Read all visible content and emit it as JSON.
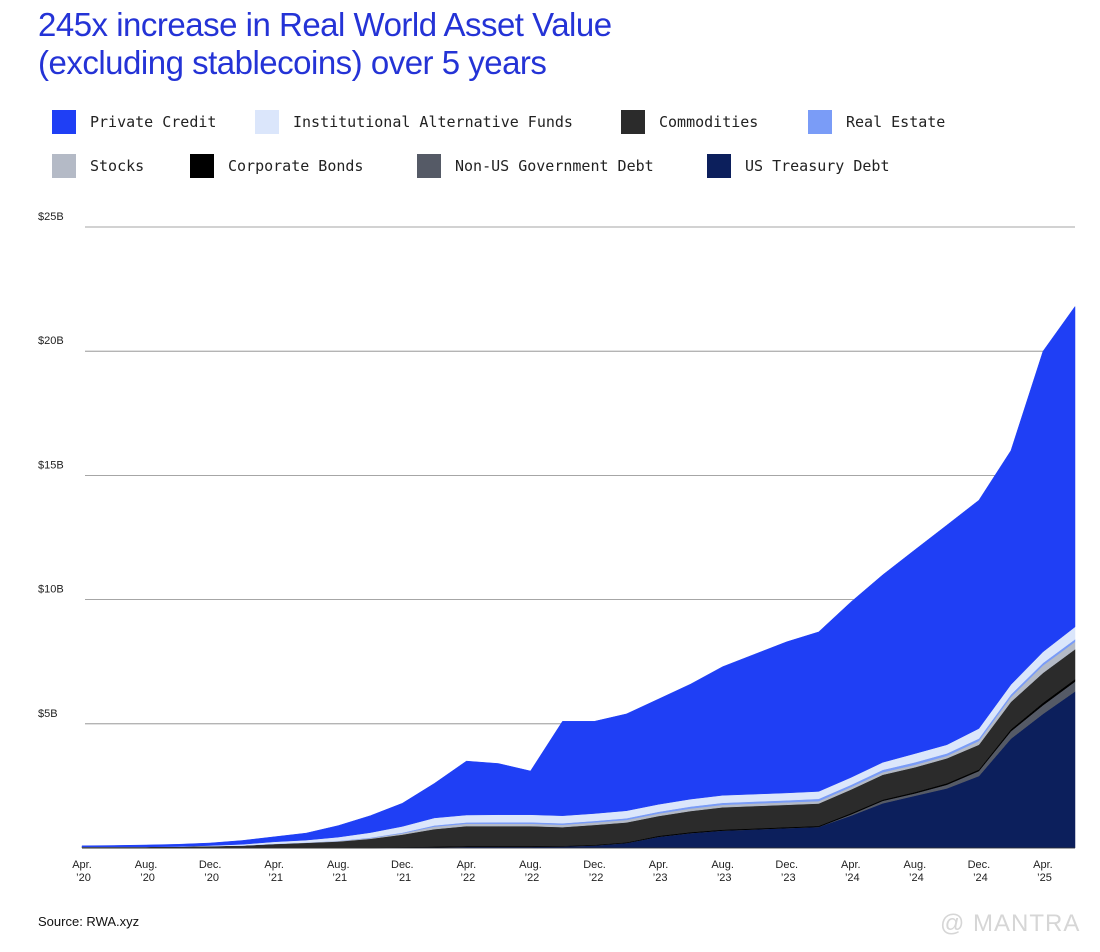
{
  "chart_data": {
    "type": "stacked-area",
    "title": "245x increase in Real World Asset Value (excluding stablecoins) over 5 years",
    "source": "Source: RWA.xyz",
    "watermark": "@ MANTRA",
    "categories": [
      "Apr. ’20",
      null,
      "Aug. ’20",
      null,
      "Dec. ’20",
      null,
      "Apr. ’21",
      null,
      "Aug. ’21",
      null,
      "Dec. ’21",
      null,
      "Apr. ’22",
      null,
      "Aug. ’22",
      null,
      "Dec. ’22",
      null,
      "Apr. ’23",
      null,
      "Aug. ’23",
      null,
      "Dec. ’23",
      null,
      "Apr. ’24",
      null,
      "Aug. ’24",
      null,
      "Dec. ’24",
      null,
      "Apr. ’25",
      null
    ],
    "ylim": [
      0,
      25
    ],
    "yticks": [
      {
        "value": 5,
        "label": "$5B"
      },
      {
        "value": 10,
        "label": "$10B"
      },
      {
        "value": 15,
        "label": "$15B"
      },
      {
        "value": 20,
        "label": "$20B"
      },
      {
        "value": 25,
        "label": "$25B"
      }
    ],
    "grid": true,
    "series": [
      {
        "name": "Private Credit",
        "color": "#1f3ff5",
        "values": [
          0.04,
          0.05,
          0.07,
          0.09,
          0.1,
          0.15,
          0.2,
          0.28,
          0.46,
          0.68,
          0.93,
          1.39,
          2.17,
          2.06,
          1.76,
          3.8,
          3.71,
          3.9,
          4.24,
          4.63,
          5.18,
          5.63,
          6.08,
          6.42,
          7.06,
          7.55,
          8.2,
          8.84,
          9.19,
          9.42,
          12.1,
          12.9
        ]
      },
      {
        "name": "Institutional Alternative Funds",
        "color": "#dbe6fb",
        "values": [
          0,
          0,
          0,
          0,
          0.02,
          0.05,
          0.08,
          0.1,
          0.15,
          0.2,
          0.25,
          0.3,
          0.3,
          0.3,
          0.3,
          0.3,
          0.3,
          0.3,
          0.3,
          0.3,
          0.3,
          0.3,
          0.3,
          0.3,
          0.3,
          0.3,
          0.35,
          0.35,
          0.4,
          0.4,
          0.45,
          0.5
        ]
      },
      {
        "name": "Commodities",
        "color": "#2b2b2b",
        "values": [
          0.05,
          0.05,
          0.05,
          0.06,
          0.08,
          0.1,
          0.15,
          0.2,
          0.25,
          0.35,
          0.5,
          0.7,
          0.8,
          0.8,
          0.8,
          0.75,
          0.8,
          0.8,
          0.8,
          0.85,
          0.9,
          0.9,
          0.9,
          0.9,
          0.95,
          1.0,
          1.0,
          1.0,
          1.0,
          1.1,
          1.2,
          1.2
        ]
      },
      {
        "name": "Real Estate",
        "color": "#7a9cf7",
        "values": [
          0,
          0,
          0,
          0,
          0,
          0,
          0,
          0,
          0.01,
          0.02,
          0.03,
          0.05,
          0.05,
          0.06,
          0.06,
          0.06,
          0.06,
          0.07,
          0.07,
          0.08,
          0.08,
          0.08,
          0.08,
          0.09,
          0.09,
          0.1,
          0.1,
          0.1,
          0.1,
          0.1,
          0.1,
          0.1
        ]
      },
      {
        "name": "Stocks",
        "color": "#b4bac6",
        "values": [
          0,
          0,
          0,
          0,
          0,
          0,
          0.01,
          0.01,
          0.02,
          0.03,
          0.05,
          0.1,
          0.1,
          0.1,
          0.1,
          0.1,
          0.1,
          0.1,
          0.1,
          0.1,
          0.1,
          0.1,
          0.1,
          0.1,
          0.1,
          0.1,
          0.1,
          0.1,
          0.15,
          0.2,
          0.3,
          0.3
        ]
      },
      {
        "name": "Corporate Bonds",
        "color": "#000000",
        "values": [
          0,
          0,
          0,
          0,
          0,
          0,
          0.01,
          0.01,
          0.01,
          0.02,
          0.02,
          0.03,
          0.03,
          0.03,
          0.03,
          0.03,
          0.03,
          0.03,
          0.04,
          0.04,
          0.04,
          0.04,
          0.04,
          0.04,
          0.05,
          0.05,
          0.05,
          0.06,
          0.06,
          0.08,
          0.1,
          0.1
        ]
      },
      {
        "name": "Non-US Government Debt",
        "color": "#555a66",
        "values": [
          0,
          0,
          0,
          0,
          0,
          0,
          0,
          0,
          0,
          0,
          0,
          0,
          0,
          0,
          0,
          0,
          0,
          0,
          0,
          0,
          0,
          0,
          0,
          0,
          0.05,
          0.1,
          0.1,
          0.15,
          0.2,
          0.3,
          0.35,
          0.4
        ]
      },
      {
        "name": "US Treasury Debt",
        "color": "#0c1f5c",
        "values": [
          0,
          0,
          0,
          0,
          0,
          0,
          0,
          0,
          0,
          0,
          0.02,
          0.03,
          0.05,
          0.05,
          0.05,
          0.06,
          0.1,
          0.2,
          0.45,
          0.6,
          0.7,
          0.75,
          0.8,
          0.85,
          1.3,
          1.8,
          2.1,
          2.4,
          2.9,
          4.4,
          5.4,
          6.3
        ]
      }
    ],
    "stack_order": [
      "US Treasury Debt",
      "Non-US Government Debt",
      "Corporate Bonds",
      "Commodities",
      "Stocks",
      "Real Estate",
      "Institutional Alternative Funds",
      "Private Credit"
    ]
  }
}
